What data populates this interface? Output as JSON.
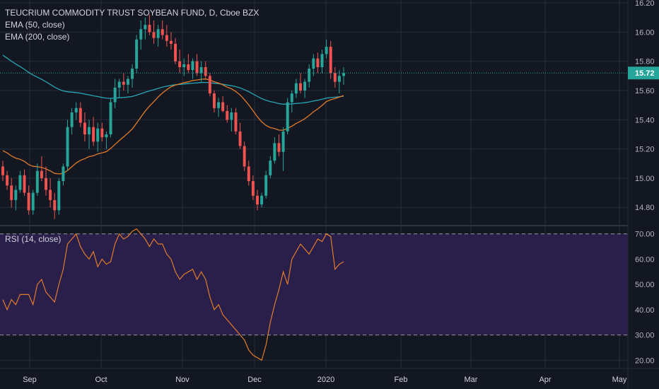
{
  "header": {
    "title": "TEUCRIUM COMMODITY TRUST SOYBEAN FUND, D, Cboe BZX",
    "ema50_label": "EMA (50, close)",
    "ema200_label": "EMA (200, close)",
    "rsi_label": "RSI (14, close)"
  },
  "colors": {
    "background": "#131722",
    "grid": "#2a2e39",
    "up": "#26a69a",
    "down": "#ef5350",
    "ema50": "#e07b2a",
    "ema200": "#26a6b4",
    "rsi_line": "#e07b2a",
    "rsi_band": "#2a1f4a",
    "price_badge": "#26a69a"
  },
  "chart_data": [
    {
      "type": "candlestick",
      "title": "TEUCRIUM COMMODITY TRUST SOYBEAN FUND, D, Cboe BZX",
      "x_tick_labels": [
        "Sep",
        "Oct",
        "Nov",
        "Dec",
        "2020",
        "Feb",
        "Mar",
        "Apr",
        "May"
      ],
      "y_tick_labels": [
        "16.20",
        "16.00",
        "15.80",
        "15.60",
        "15.40",
        "15.20",
        "15.00",
        "14.80"
      ],
      "ylim": [
        14.68,
        16.22
      ],
      "last_price": "15.72",
      "candles": [
        [
          15.08,
          15.12,
          14.98,
          15.02
        ],
        [
          15.02,
          15.05,
          14.92,
          14.95
        ],
        [
          14.95,
          15.0,
          14.8,
          14.85
        ],
        [
          14.85,
          14.95,
          14.78,
          14.92
        ],
        [
          14.92,
          15.05,
          14.9,
          15.02
        ],
        [
          15.02,
          15.06,
          14.88,
          14.9
        ],
        [
          14.9,
          14.95,
          14.75,
          14.78
        ],
        [
          14.78,
          14.92,
          14.75,
          14.9
        ],
        [
          14.9,
          15.1,
          14.88,
          15.05
        ],
        [
          15.05,
          15.15,
          14.98,
          15.0
        ],
        [
          15.0,
          15.08,
          14.88,
          14.92
        ],
        [
          14.92,
          15.0,
          14.8,
          14.85
        ],
        [
          14.85,
          14.9,
          14.72,
          14.78
        ],
        [
          14.78,
          15.0,
          14.75,
          14.98
        ],
        [
          14.98,
          15.1,
          14.95,
          15.08
        ],
        [
          15.08,
          15.4,
          15.05,
          15.35
        ],
        [
          15.35,
          15.48,
          15.3,
          15.45
        ],
        [
          15.45,
          15.52,
          15.4,
          15.48
        ],
        [
          15.48,
          15.52,
          15.35,
          15.38
        ],
        [
          15.38,
          15.45,
          15.25,
          15.3
        ],
        [
          15.3,
          15.4,
          15.2,
          15.35
        ],
        [
          15.35,
          15.42,
          15.22,
          15.25
        ],
        [
          15.25,
          15.38,
          15.18,
          15.34
        ],
        [
          15.34,
          15.38,
          15.25,
          15.28
        ],
        [
          15.28,
          15.32,
          15.2,
          15.3
        ],
        [
          15.3,
          15.55,
          15.28,
          15.52
        ],
        [
          15.52,
          15.68,
          15.48,
          15.62
        ],
        [
          15.62,
          15.68,
          15.55,
          15.66
        ],
        [
          15.66,
          15.72,
          15.6,
          15.64
        ],
        [
          15.64,
          15.7,
          15.58,
          15.68
        ],
        [
          15.68,
          15.78,
          15.62,
          15.75
        ],
        [
          15.75,
          15.98,
          15.72,
          15.95
        ],
        [
          15.95,
          16.08,
          15.88,
          16.02
        ],
        [
          16.02,
          16.1,
          15.95,
          16.05
        ],
        [
          16.05,
          16.12,
          15.98,
          16.0
        ],
        [
          16.0,
          16.08,
          15.92,
          15.96
        ],
        [
          15.96,
          16.05,
          15.9,
          16.02
        ],
        [
          16.02,
          16.08,
          15.95,
          15.98
        ],
        [
          15.98,
          16.05,
          15.9,
          15.94
        ],
        [
          15.94,
          16.0,
          15.88,
          15.92
        ],
        [
          15.92,
          15.96,
          15.78,
          15.8
        ],
        [
          15.8,
          15.88,
          15.72,
          15.76
        ],
        [
          15.76,
          15.82,
          15.7,
          15.78
        ],
        [
          15.78,
          15.85,
          15.72,
          15.74
        ],
        [
          15.74,
          15.82,
          15.68,
          15.8
        ],
        [
          15.8,
          15.85,
          15.7,
          15.72
        ],
        [
          15.72,
          15.8,
          15.66,
          15.76
        ],
        [
          15.76,
          15.8,
          15.68,
          15.7
        ],
        [
          15.7,
          15.72,
          15.56,
          15.58
        ],
        [
          15.58,
          15.6,
          15.45,
          15.48
        ],
        [
          15.48,
          15.55,
          15.42,
          15.52
        ],
        [
          15.52,
          15.56,
          15.45,
          15.46
        ],
        [
          15.46,
          15.5,
          15.38,
          15.4
        ],
        [
          15.4,
          15.48,
          15.32,
          15.45
        ],
        [
          15.45,
          15.48,
          15.3,
          15.32
        ],
        [
          15.32,
          15.38,
          15.2,
          15.22
        ],
        [
          15.22,
          15.25,
          15.05,
          15.08
        ],
        [
          15.08,
          15.12,
          14.95,
          14.98
        ],
        [
          14.98,
          15.02,
          14.85,
          14.88
        ],
        [
          14.88,
          14.92,
          14.78,
          14.82
        ],
        [
          14.82,
          14.9,
          14.8,
          14.88
        ],
        [
          14.88,
          15.05,
          14.86,
          15.02
        ],
        [
          15.02,
          15.15,
          15.0,
          15.12
        ],
        [
          15.12,
          15.28,
          15.1,
          15.24
        ],
        [
          15.24,
          15.3,
          15.15,
          15.18
        ],
        [
          15.18,
          15.35,
          15.05,
          15.32
        ],
        [
          15.32,
          15.55,
          15.3,
          15.52
        ],
        [
          15.52,
          15.6,
          15.45,
          15.58
        ],
        [
          15.58,
          15.68,
          15.55,
          15.65
        ],
        [
          15.65,
          15.72,
          15.58,
          15.6
        ],
        [
          15.6,
          15.68,
          15.55,
          15.66
        ],
        [
          15.66,
          15.78,
          15.62,
          15.75
        ],
        [
          15.75,
          15.85,
          15.7,
          15.82
        ],
        [
          15.82,
          15.86,
          15.72,
          15.76
        ],
        [
          15.76,
          15.88,
          15.72,
          15.85
        ],
        [
          15.85,
          15.95,
          15.82,
          15.9
        ],
        [
          15.9,
          15.94,
          15.68,
          15.72
        ],
        [
          15.72,
          15.76,
          15.62,
          15.66
        ],
        [
          15.66,
          15.74,
          15.58,
          15.7
        ],
        [
          15.7,
          15.76,
          15.64,
          15.72
        ]
      ]
    },
    {
      "type": "line",
      "title": "RSI (14, close)",
      "y_tick_labels": [
        "70.00",
        "60.00",
        "50.00",
        "40.00",
        "30.00",
        "20.00"
      ],
      "ylim": [
        17,
        73
      ],
      "overbought": 70,
      "oversold": 30,
      "values": [
        44,
        40,
        44,
        42,
        46,
        46,
        46,
        42,
        50,
        52,
        47,
        45,
        43,
        50,
        56,
        66,
        68,
        70,
        65,
        62,
        60,
        63,
        57,
        60,
        58,
        59,
        66,
        70,
        68,
        69,
        71,
        72,
        70,
        68,
        65,
        68,
        66,
        66,
        62,
        60,
        55,
        52,
        54,
        55,
        56,
        52,
        55,
        52,
        45,
        40,
        42,
        38,
        36,
        34,
        32,
        30,
        28,
        24,
        22,
        21,
        20,
        26,
        35,
        42,
        48,
        55,
        50,
        60,
        63,
        66,
        64,
        62,
        65,
        68,
        67,
        70,
        69,
        56,
        58,
        59
      ]
    }
  ]
}
